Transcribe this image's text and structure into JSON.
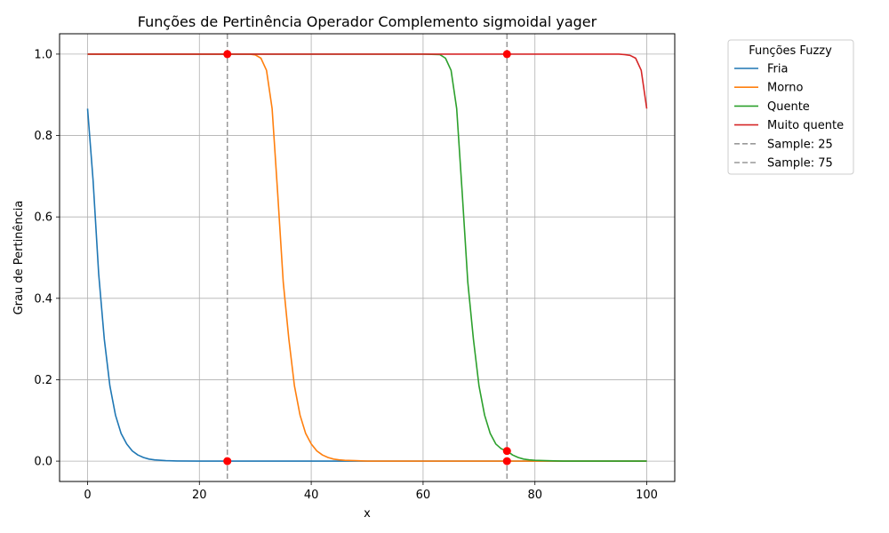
{
  "chart_data": {
    "type": "line",
    "title": "Funções de Pertinência Operador Complemento sigmoidal yager",
    "xlabel": "x",
    "ylabel": "Grau de Pertinência",
    "xlim": [
      -5,
      105
    ],
    "ylim": [
      -0.05,
      1.05
    ],
    "xticks": [
      0,
      20,
      40,
      60,
      80,
      100
    ],
    "yticks": [
      0.0,
      0.2,
      0.4,
      0.6,
      0.8,
      1.0
    ],
    "xtick_labels": [
      "0",
      "20",
      "40",
      "60",
      "80",
      "100"
    ],
    "ytick_labels": [
      "0.0",
      "0.2",
      "0.4",
      "0.6",
      "0.8",
      "1.0"
    ],
    "grid": true,
    "legend": {
      "title": "Funções Fuzzy",
      "placement": "outside-top-right",
      "entries": [
        "Fria",
        "Morno",
        "Quente",
        "Muito quente",
        "Sample: 25",
        "Sample: 75"
      ]
    },
    "series": [
      {
        "name": "Fria",
        "color": "#1f77b4",
        "x": [
          0,
          1,
          2,
          3,
          4,
          5,
          6,
          7,
          8,
          9,
          10,
          11,
          12,
          14,
          16,
          20,
          30,
          50,
          75,
          100
        ],
        "values": [
          0.866,
          0.69,
          0.46,
          0.3,
          0.185,
          0.113,
          0.068,
          0.042,
          0.025,
          0.015,
          0.009,
          0.005,
          0.003,
          0.001,
          0.0005,
          0.0,
          0.0,
          0.0,
          0.0,
          0.0
        ]
      },
      {
        "name": "Morno",
        "color": "#ff7f0e",
        "x": [
          0,
          20,
          29,
          30,
          31,
          32,
          33,
          34,
          35,
          36,
          37,
          38,
          39,
          40,
          41,
          42,
          43,
          44,
          45,
          46,
          48,
          50,
          60,
          75,
          100
        ],
        "values": [
          1.0,
          1.0,
          1.0,
          0.998,
          0.99,
          0.96,
          0.866,
          0.66,
          0.44,
          0.3,
          0.185,
          0.113,
          0.068,
          0.042,
          0.025,
          0.015,
          0.009,
          0.005,
          0.003,
          0.002,
          0.001,
          0.0,
          0.0,
          0.0,
          0.0
        ]
      },
      {
        "name": "Quente",
        "color": "#2ca02c",
        "x": [
          0,
          20,
          40,
          60,
          63,
          64,
          65,
          66,
          67,
          68,
          69,
          70,
          71,
          72,
          73,
          74,
          75,
          76,
          77,
          78,
          79,
          80,
          82,
          85,
          90,
          100
        ],
        "values": [
          1.0,
          1.0,
          1.0,
          1.0,
          0.999,
          0.99,
          0.96,
          0.866,
          0.66,
          0.44,
          0.3,
          0.185,
          0.113,
          0.068,
          0.042,
          0.03,
          0.025,
          0.015,
          0.009,
          0.005,
          0.003,
          0.002,
          0.001,
          0.0,
          0.0,
          0.0
        ]
      },
      {
        "name": "Muito quente",
        "color": "#d62728",
        "x": [
          0,
          25,
          50,
          75,
          95,
          96,
          97,
          98,
          99,
          100
        ],
        "values": [
          1.0,
          1.0,
          1.0,
          1.0,
          1.0,
          0.999,
          0.997,
          0.99,
          0.96,
          0.866
        ]
      }
    ],
    "samples": [
      {
        "name": "Sample: 25",
        "x": 25,
        "color": "#999999",
        "points": [
          1.0,
          0.0
        ]
      },
      {
        "name": "Sample: 75",
        "x": 75,
        "color": "#999999",
        "points": [
          1.0,
          0.025,
          0.0
        ]
      }
    ],
    "marker_color": "#ff0000"
  }
}
